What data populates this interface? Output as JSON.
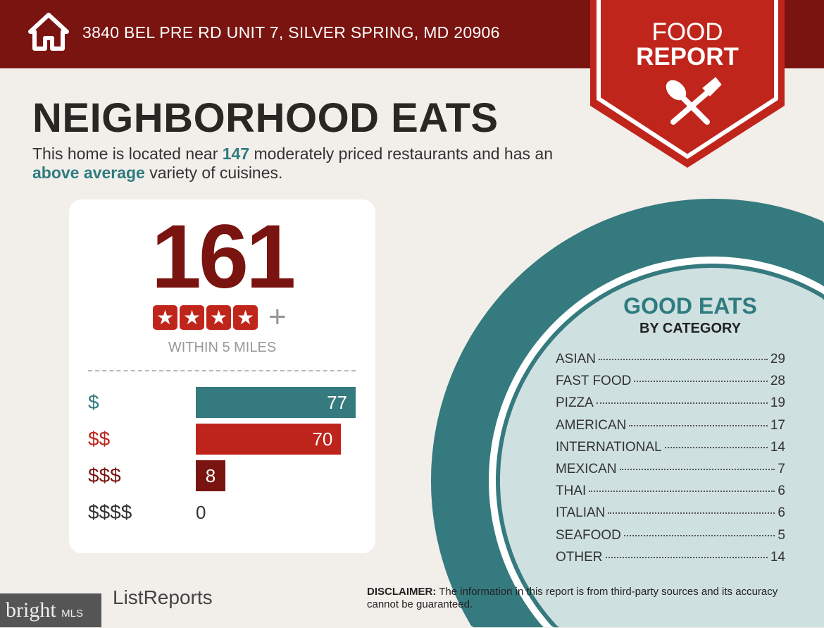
{
  "header": {
    "address": "3840 BEL PRE RD UNIT 7, SILVER SPRING, MD 20906",
    "badge_line1": "FOOD",
    "badge_line2": "REPORT"
  },
  "title": "NEIGHBORHOOD EATS",
  "subtitle": {
    "p1": "This home is located near ",
    "count": "147",
    "p2": " moderately priced restaurants and has an ",
    "variety": "above average",
    "p3": " variety of cuisines."
  },
  "summary": {
    "total": "161",
    "stars": 4,
    "plus": "+",
    "within": "WITHIN 5 MILES"
  },
  "colors": {
    "dark_red": "#7a1410",
    "red": "#c0251c",
    "teal": "#2f7c80",
    "light_teal": "#cfe0e0",
    "bg": "#f2eeea"
  },
  "chart_data": {
    "type": "bar",
    "orientation": "horizontal",
    "categories": [
      "$",
      "$$",
      "$$$",
      "$$$$"
    ],
    "values": [
      77,
      70,
      8,
      0
    ],
    "colors": [
      "#357a7e",
      "#bf241c",
      "#7a1410",
      "#333333"
    ]
  },
  "good_eats": {
    "title": "GOOD EATS",
    "subtitle": "BY CATEGORY",
    "items": [
      {
        "name": "ASIAN",
        "count": "29"
      },
      {
        "name": "FAST FOOD",
        "count": "28"
      },
      {
        "name": "PIZZA",
        "count": "19"
      },
      {
        "name": "AMERICAN",
        "count": "17"
      },
      {
        "name": "INTERNATIONAL",
        "count": "14"
      },
      {
        "name": "MEXICAN",
        "count": "7"
      },
      {
        "name": "THAI",
        "count": "6"
      },
      {
        "name": "ITALIAN",
        "count": "6"
      },
      {
        "name": "SEAFOOD",
        "count": "5"
      },
      {
        "name": "OTHER",
        "count": "14"
      }
    ]
  },
  "footer": {
    "logo": "ListReports",
    "bright": "bright",
    "mls": "MLS",
    "disclaimer_label": "DISCLAIMER:",
    "disclaimer_text": " The information in this report is from third-party sources and its accuracy cannot be guaranteed."
  }
}
